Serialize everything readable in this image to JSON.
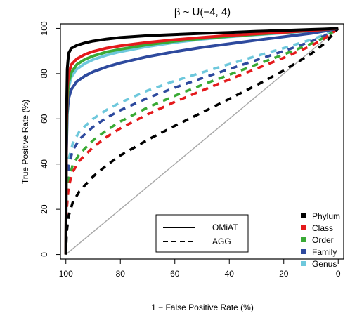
{
  "chart_data": {
    "type": "line",
    "title": "β ~ U(−4, 4)",
    "xlabel": "1 − False Positive Rate (%)",
    "ylabel": "True Positive Rate (%)",
    "xlim": [
      102,
      -2
    ],
    "ylim": [
      -2,
      102
    ],
    "x_reversed": true,
    "x_ticks": [
      100,
      80,
      60,
      40,
      20,
      0
    ],
    "y_ticks": [
      0,
      20,
      40,
      60,
      80,
      100
    ],
    "grid": false,
    "diagonal_reference": true,
    "colors": {
      "Phylum": "#000000",
      "Class": "#e41a1c",
      "Order": "#3aaa35",
      "Family": "#2e4a9e",
      "Genus": "#6ec8dc",
      "diagonal": "#a8a8a8"
    },
    "method_legend": {
      "position": "bottom-center",
      "entries": [
        {
          "label": "OMiAT",
          "style": "solid"
        },
        {
          "label": "AGG",
          "style": "dashed"
        }
      ]
    },
    "level_legend": {
      "position": "bottom-right",
      "entries": [
        "Phylum",
        "Class",
        "Order",
        "Family",
        "Genus"
      ]
    },
    "series": [
      {
        "method": "OMiAT",
        "level": "Phylum",
        "style": "solid",
        "x": [
          100,
          99.8,
          99.5,
          99,
          98,
          96,
          93,
          90,
          85,
          80,
          70,
          60,
          50,
          40,
          30,
          20,
          10,
          5,
          0
        ],
        "y": [
          0,
          60,
          82,
          89,
          91.2,
          92.5,
          93.6,
          94.4,
          95.3,
          96,
          96.8,
          97.3,
          97.8,
          98.2,
          98.7,
          99.1,
          99.5,
          99.7,
          100
        ]
      },
      {
        "method": "OMiAT",
        "level": "Class",
        "style": "solid",
        "x": [
          100,
          99.8,
          99.5,
          99,
          98,
          96,
          93,
          90,
          85,
          80,
          70,
          60,
          50,
          40,
          30,
          20,
          10,
          5,
          0
        ],
        "y": [
          0,
          55,
          74,
          80,
          84,
          86.5,
          88.5,
          89.8,
          91.3,
          92.3,
          93.8,
          95,
          96,
          96.9,
          97.6,
          98.3,
          99,
          99.5,
          100
        ]
      },
      {
        "method": "OMiAT",
        "level": "Order",
        "style": "solid",
        "x": [
          100,
          99.8,
          99.5,
          99,
          98,
          96,
          93,
          90,
          85,
          80,
          70,
          60,
          50,
          40,
          30,
          20,
          10,
          5,
          0
        ],
        "y": [
          0,
          50,
          68,
          76,
          80.5,
          84,
          86.3,
          87.8,
          89.6,
          90.8,
          92.8,
          94.3,
          95.5,
          96.5,
          97.4,
          98.2,
          99,
          99.5,
          100
        ]
      },
      {
        "method": "OMiAT",
        "level": "Family",
        "style": "solid",
        "x": [
          100,
          99.8,
          99.5,
          99,
          98,
          96,
          93,
          90,
          85,
          80,
          70,
          60,
          50,
          40,
          30,
          20,
          10,
          5,
          0
        ],
        "y": [
          0,
          45,
          62,
          69,
          73,
          76.5,
          79,
          80.8,
          83,
          84.7,
          87.5,
          89.7,
          91.6,
          93.2,
          94.8,
          96.3,
          97.8,
          98.8,
          100
        ]
      },
      {
        "method": "OMiAT",
        "level": "Genus",
        "style": "solid",
        "x": [
          100,
          99.8,
          99.5,
          99,
          98,
          96,
          93,
          90,
          85,
          80,
          70,
          60,
          50,
          40,
          30,
          20,
          10,
          5,
          0
        ],
        "y": [
          0,
          48,
          66,
          74,
          78.5,
          82,
          84.5,
          86.2,
          88.2,
          89.7,
          92,
          93.8,
          95.2,
          96.3,
          97.2,
          98,
          98.9,
          99.4,
          100
        ]
      },
      {
        "method": "AGG",
        "level": "Phylum",
        "style": "dashed",
        "x": [
          100,
          99.7,
          99,
          97.5,
          95,
          90,
          85,
          80,
          70,
          60,
          50,
          40,
          30,
          20,
          10,
          5,
          0
        ],
        "y": [
          0,
          10,
          17,
          23,
          28,
          34.5,
          39.5,
          43.8,
          50.7,
          56.9,
          62.8,
          68.8,
          74.9,
          81.4,
          88.7,
          93.4,
          100
        ]
      },
      {
        "method": "AGG",
        "level": "Class",
        "style": "dashed",
        "x": [
          100,
          99.7,
          99,
          97.5,
          95,
          90,
          85,
          80,
          70,
          60,
          50,
          40,
          30,
          20,
          10,
          5,
          0
        ],
        "y": [
          0,
          20,
          30,
          36.5,
          41.5,
          47.5,
          52,
          55.8,
          62,
          67.5,
          72.5,
          77.4,
          82.2,
          87,
          92.3,
          95.6,
          100
        ]
      },
      {
        "method": "AGG",
        "level": "Order",
        "style": "dashed",
        "x": [
          100,
          99.7,
          99,
          97.5,
          95,
          90,
          85,
          80,
          70,
          60,
          50,
          40,
          30,
          20,
          10,
          5,
          0
        ],
        "y": [
          0,
          22,
          33,
          39.5,
          44.5,
          50.5,
          55,
          58.8,
          65,
          70.2,
          75,
          79.5,
          84,
          88.5,
          93.2,
          96,
          100
        ]
      },
      {
        "method": "AGG",
        "level": "Family",
        "style": "dashed",
        "x": [
          100,
          99.7,
          99,
          97.5,
          95,
          90,
          85,
          80,
          70,
          60,
          50,
          40,
          30,
          20,
          10,
          5,
          0
        ],
        "y": [
          0,
          27,
          39,
          46,
          51,
          56.5,
          60.5,
          63.8,
          69.2,
          73.8,
          78,
          82,
          86,
          90,
          94.2,
          96.8,
          100
        ]
      },
      {
        "method": "AGG",
        "level": "Genus",
        "style": "dashed",
        "x": [
          100,
          99.7,
          99,
          97.5,
          95,
          90,
          85,
          80,
          70,
          60,
          50,
          40,
          30,
          20,
          10,
          5,
          0
        ],
        "y": [
          0,
          30,
          42,
          49,
          54.5,
          60,
          64,
          67.2,
          72.5,
          76.8,
          80.5,
          84.2,
          87.8,
          91.3,
          95,
          97.2,
          100
        ]
      }
    ]
  }
}
